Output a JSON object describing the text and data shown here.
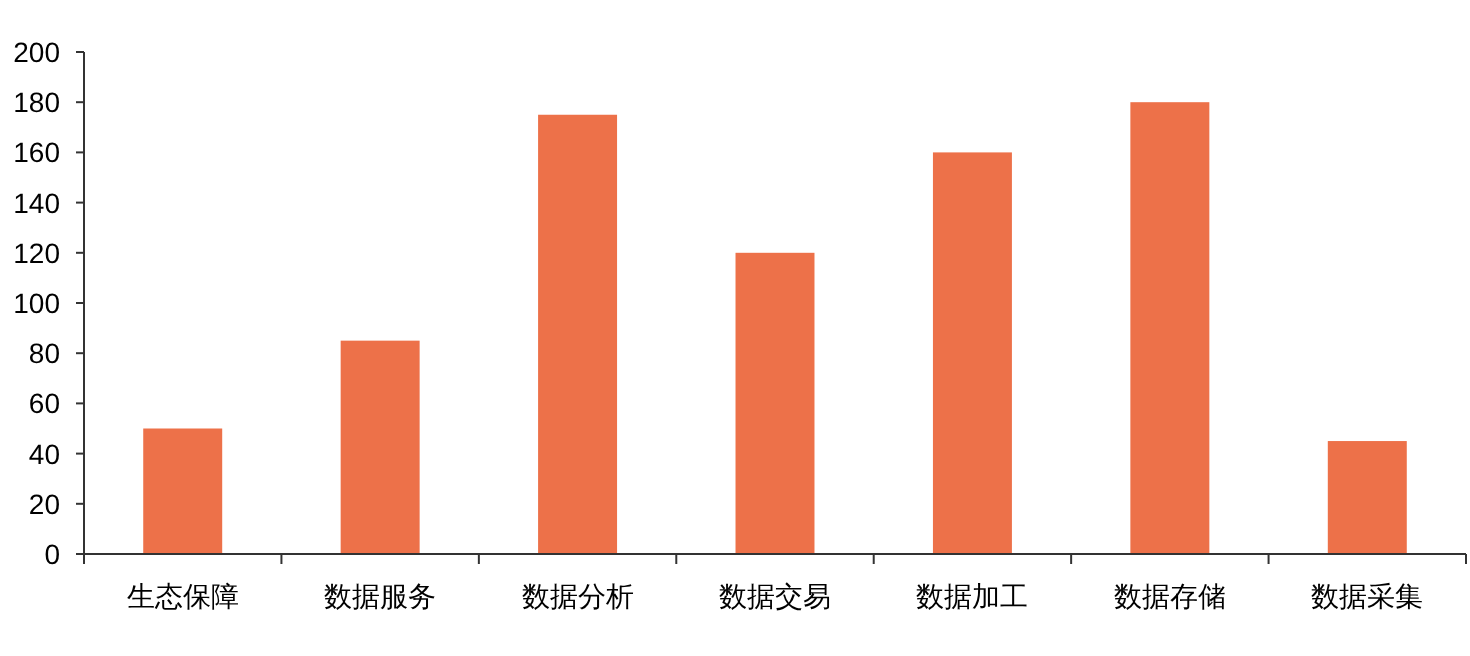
{
  "chart_data": {
    "type": "bar",
    "categories": [
      "生态保障",
      "数据服务",
      "数据分析",
      "数据交易",
      "数据加工",
      "数据存储",
      "数据采集"
    ],
    "values": [
      50,
      85,
      175,
      120,
      160,
      180,
      45
    ],
    "color": "#ed7149",
    "ylim": [
      0,
      200
    ],
    "yticks": [
      0,
      20,
      40,
      60,
      80,
      100,
      120,
      140,
      160,
      180,
      200
    ],
    "grid": false
  }
}
